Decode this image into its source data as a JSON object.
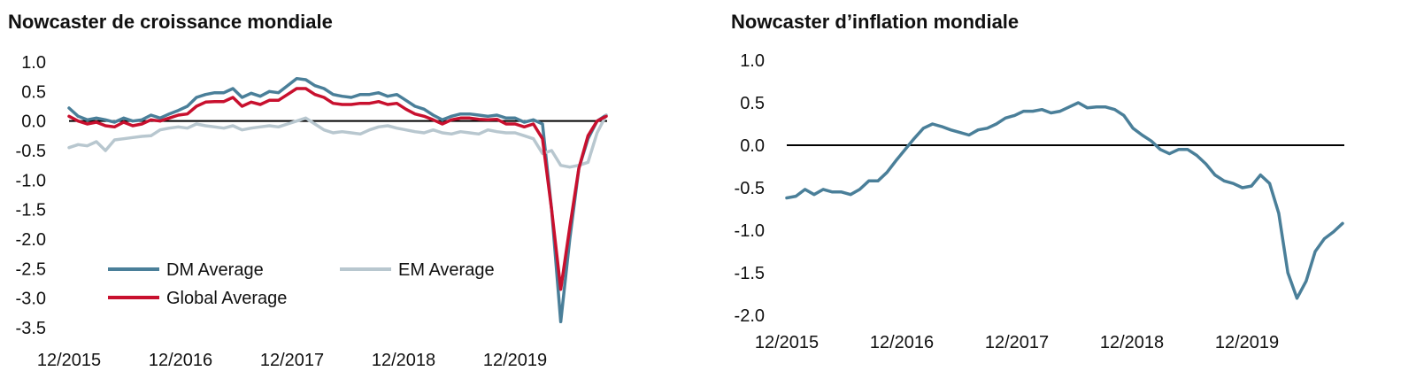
{
  "chart_data": [
    {
      "type": "line",
      "title": "Nowcaster de croissance mondiale",
      "x_ticks": [
        "12/2015",
        "12/2016",
        "12/2017",
        "12/2018",
        "12/2019"
      ],
      "y_ticks": [
        "1.0",
        "0.5",
        "0.0",
        "-0.5",
        "-1.0",
        "-1.5",
        "-2.0",
        "-2.5",
        "-3.0",
        "-3.5"
      ],
      "ylim": [
        -3.5,
        1.0
      ],
      "x_range": [
        "12/2015",
        "11/2020"
      ],
      "zero_line": true,
      "legend": {
        "placement": "bottom-left",
        "entries": [
          "DM Average",
          "EM Average",
          "Global Average"
        ]
      },
      "series": [
        {
          "name": "DM Average",
          "color": "#4a7f99",
          "values": [
            0.22,
            0.08,
            0.02,
            0.05,
            0.02,
            -0.02,
            0.05,
            0.0,
            0.02,
            0.1,
            0.05,
            0.12,
            0.18,
            0.25,
            0.4,
            0.45,
            0.48,
            0.48,
            0.55,
            0.4,
            0.47,
            0.42,
            0.5,
            0.48,
            0.6,
            0.72,
            0.7,
            0.6,
            0.55,
            0.45,
            0.42,
            0.4,
            0.45,
            0.45,
            0.48,
            0.42,
            0.45,
            0.35,
            0.25,
            0.2,
            0.1,
            0.02,
            0.08,
            0.12,
            0.12,
            0.1,
            0.08,
            0.1,
            0.05,
            0.05,
            -0.02,
            0.02,
            -0.05,
            -1.5,
            -3.4,
            -2.0,
            -0.8,
            -0.3,
            0.0,
            0.1
          ]
        },
        {
          "name": "EM Average",
          "color": "#b8c7cf",
          "values": [
            -0.45,
            -0.4,
            -0.42,
            -0.35,
            -0.5,
            -0.32,
            -0.3,
            -0.28,
            -0.26,
            -0.25,
            -0.15,
            -0.12,
            -0.1,
            -0.12,
            -0.05,
            -0.08,
            -0.1,
            -0.12,
            -0.08,
            -0.15,
            -0.12,
            -0.1,
            -0.08,
            -0.1,
            -0.05,
            0.0,
            0.05,
            -0.05,
            -0.15,
            -0.2,
            -0.18,
            -0.2,
            -0.22,
            -0.15,
            -0.1,
            -0.08,
            -0.12,
            -0.15,
            -0.18,
            -0.2,
            -0.15,
            -0.2,
            -0.22,
            -0.18,
            -0.2,
            -0.22,
            -0.15,
            -0.18,
            -0.2,
            -0.2,
            -0.25,
            -0.3,
            -0.55,
            -0.5,
            -0.75,
            -0.78,
            -0.75,
            -0.7,
            -0.2,
            0.1
          ]
        },
        {
          "name": "Global Average",
          "color": "#c8102e",
          "values": [
            0.08,
            0.0,
            -0.05,
            -0.02,
            -0.08,
            -0.1,
            -0.02,
            -0.08,
            -0.05,
            0.02,
            0.0,
            0.05,
            0.1,
            0.12,
            0.25,
            0.32,
            0.33,
            0.33,
            0.4,
            0.25,
            0.32,
            0.28,
            0.35,
            0.35,
            0.45,
            0.55,
            0.55,
            0.45,
            0.4,
            0.3,
            0.28,
            0.28,
            0.3,
            0.3,
            0.33,
            0.28,
            0.3,
            0.2,
            0.12,
            0.08,
            0.02,
            -0.05,
            0.02,
            0.05,
            0.05,
            0.03,
            0.02,
            0.03,
            -0.05,
            -0.05,
            -0.1,
            -0.05,
            -0.3,
            -1.5,
            -2.85,
            -1.8,
            -0.8,
            -0.25,
            0.0,
            0.08
          ]
        }
      ]
    },
    {
      "type": "line",
      "title": "Nowcaster d’inflation mondiale",
      "x_ticks": [
        "12/2015",
        "12/2016",
        "12/2017",
        "12/2018",
        "12/2019"
      ],
      "y_ticks": [
        "1.0",
        "0.5",
        "0.0",
        "-0.5",
        "-1.0",
        "-1.5",
        "-2.0"
      ],
      "ylim": [
        -2.0,
        1.0
      ],
      "x_range": [
        "12/2015",
        "11/2020"
      ],
      "zero_line": true,
      "series": [
        {
          "name": "",
          "color": "#4a7f99",
          "values": [
            -0.62,
            -0.6,
            -0.52,
            -0.58,
            -0.52,
            -0.55,
            -0.55,
            -0.58,
            -0.52,
            -0.42,
            -0.42,
            -0.32,
            -0.18,
            -0.05,
            0.08,
            0.2,
            0.25,
            0.22,
            0.18,
            0.15,
            0.12,
            0.18,
            0.2,
            0.25,
            0.32,
            0.35,
            0.4,
            0.4,
            0.42,
            0.38,
            0.4,
            0.45,
            0.5,
            0.44,
            0.45,
            0.45,
            0.42,
            0.35,
            0.2,
            0.12,
            0.05,
            -0.05,
            -0.1,
            -0.05,
            -0.05,
            -0.12,
            -0.22,
            -0.35,
            -0.42,
            -0.45,
            -0.5,
            -0.48,
            -0.35,
            -0.45,
            -0.8,
            -1.5,
            -1.8,
            -1.6,
            -1.25,
            -1.1,
            -1.02,
            -0.92
          ]
        }
      ]
    }
  ]
}
